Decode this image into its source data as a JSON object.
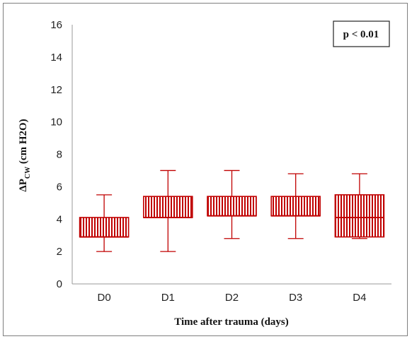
{
  "chart_data": {
    "type": "box",
    "categories": [
      "D0",
      "D1",
      "D2",
      "D3",
      "D4"
    ],
    "boxes": [
      {
        "category": "D0",
        "whisker_low": 2.0,
        "q1": 2.9,
        "median": 2.9,
        "q3": 4.1,
        "whisker_high": 5.5
      },
      {
        "category": "D1",
        "whisker_low": 2.0,
        "q1": 4.1,
        "median": 4.1,
        "q3": 5.4,
        "whisker_high": 7.0
      },
      {
        "category": "D2",
        "whisker_low": 2.8,
        "q1": 4.2,
        "median": 4.2,
        "q3": 5.4,
        "whisker_high": 7.0
      },
      {
        "category": "D3",
        "whisker_low": 2.8,
        "q1": 4.2,
        "median": 4.2,
        "q3": 5.4,
        "whisker_high": 6.8
      },
      {
        "category": "D4",
        "whisker_low": 2.8,
        "q1": 2.9,
        "median": 4.1,
        "q3": 5.5,
        "whisker_high": 6.8
      }
    ],
    "y_ticks": [
      0,
      2,
      4,
      6,
      8,
      10,
      12,
      14,
      16
    ],
    "ylim": [
      0,
      16
    ],
    "ylabel_main": "ΔP",
    "ylabel_sub": "CW",
    "ylabel_rest": " (cm H2O)",
    "xlabel": "Time after trauma (days)",
    "annotation": "p < 0.01",
    "grid": false,
    "color": "#c00000"
  }
}
